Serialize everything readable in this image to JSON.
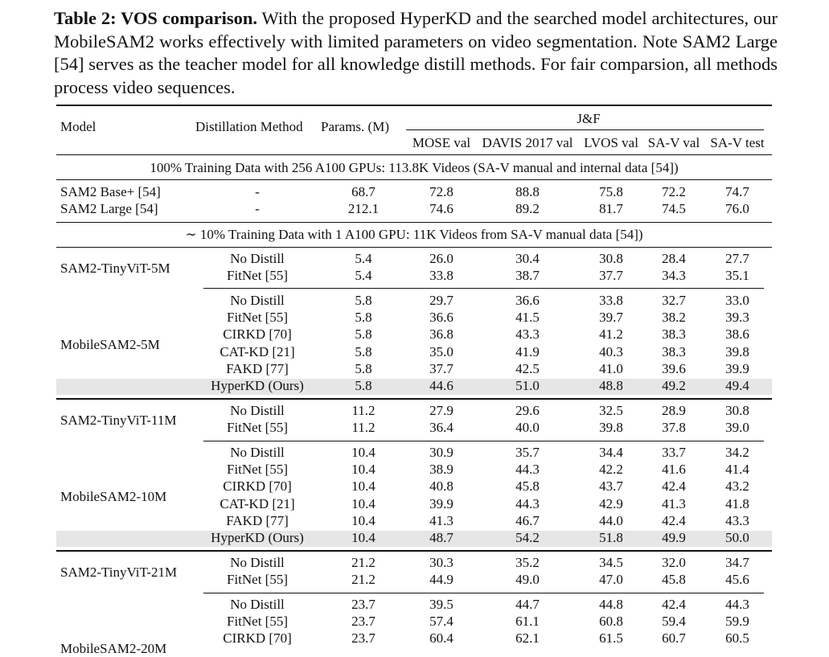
{
  "caption": {
    "label": "Table 2: VOS comparison.",
    "text": "With the proposed HyperKD and the searched model architectures, our MobileSAM2 works effectively with limited parameters on video segmentation. Note SAM2 Large [54] serves as the teacher model for all knowledge distill methods. For fair comparsion, all methods process video sequences."
  },
  "header": {
    "model": "Model",
    "method": "Distillation Method",
    "params": "Params. (M)",
    "jf": "J&F",
    "benchmarks": [
      "MOSE val",
      "DAVIS 2017 val",
      "LVOS val",
      "SA-V val",
      "SA-V test"
    ]
  },
  "section1": "100% Training Data with 256 A100 GPUs: 113.8K Videos (SA-V manual and internal data [54])",
  "section2": "∼ 10% Training Data with 1 A100 GPU: 11K Videos from SA-V manual data [54])",
  "full_rows": [
    {
      "model": "SAM2 Base+ [54]",
      "method": "-",
      "params": "68.7",
      "mose": "72.8",
      "davis": "88.8",
      "lvos": "75.8",
      "sav_val": "72.2",
      "sav_test": "74.7"
    },
    {
      "model": "SAM2 Large [54]",
      "method": "-",
      "params": "212.1",
      "mose": "74.6",
      "davis": "89.2",
      "lvos": "81.7",
      "sav_val": "74.5",
      "sav_test": "76.0"
    }
  ],
  "groups": [
    {
      "model": "SAM2-TinyViT-5M",
      "rows": [
        {
          "method": "No Distill",
          "params": "5.4",
          "mose": "26.0",
          "davis": "30.4",
          "lvos": "30.8",
          "sav_val": "28.4",
          "sav_test": "27.7"
        },
        {
          "method": "FitNet [55]",
          "params": "5.4",
          "mose": "33.8",
          "davis": "38.7",
          "lvos": "37.7",
          "sav_val": "34.3",
          "sav_test": "35.1"
        }
      ]
    },
    {
      "model": "MobileSAM2-5M",
      "rows": [
        {
          "method": "No Distill",
          "params": "5.8",
          "mose": "29.7",
          "davis": "36.6",
          "lvos": "33.8",
          "sav_val": "32.7",
          "sav_test": "33.0"
        },
        {
          "method": "FitNet [55]",
          "params": "5.8",
          "mose": "36.6",
          "davis": "41.5",
          "lvos": "39.7",
          "sav_val": "38.2",
          "sav_test": "39.3"
        },
        {
          "method": "CIRKD [70]",
          "params": "5.8",
          "mose": "36.8",
          "davis": "43.3",
          "lvos": "41.2",
          "sav_val": "38.3",
          "sav_test": "38.6"
        },
        {
          "method": "CAT-KD [21]",
          "params": "5.8",
          "mose": "35.0",
          "davis": "41.9",
          "lvos": "40.3",
          "sav_val": "38.3",
          "sav_test": "39.8"
        },
        {
          "method": "FAKD [77]",
          "params": "5.8",
          "mose": "37.7",
          "davis": "42.5",
          "lvos": "41.0",
          "sav_val": "39.6",
          "sav_test": "39.9"
        },
        {
          "method": "HyperKD (Ours)",
          "params": "5.8",
          "mose": "44.6",
          "davis": "51.0",
          "lvos": "48.8",
          "sav_val": "49.2",
          "sav_test": "49.4"
        }
      ]
    },
    {
      "model": "SAM2-TinyViT-11M",
      "rows": [
        {
          "method": "No Distill",
          "params": "11.2",
          "mose": "27.9",
          "davis": "29.6",
          "lvos": "32.5",
          "sav_val": "28.9",
          "sav_test": "30.8"
        },
        {
          "method": "FitNet [55]",
          "params": "11.2",
          "mose": "36.4",
          "davis": "40.0",
          "lvos": "39.8",
          "sav_val": "37.8",
          "sav_test": "39.0"
        }
      ]
    },
    {
      "model": "MobileSAM2-10M",
      "rows": [
        {
          "method": "No Distill",
          "params": "10.4",
          "mose": "30.9",
          "davis": "35.7",
          "lvos": "34.4",
          "sav_val": "33.7",
          "sav_test": "34.2"
        },
        {
          "method": "FitNet [55]",
          "params": "10.4",
          "mose": "38.9",
          "davis": "44.3",
          "lvos": "42.2",
          "sav_val": "41.6",
          "sav_test": "41.4"
        },
        {
          "method": "CIRKD [70]",
          "params": "10.4",
          "mose": "40.8",
          "davis": "45.8",
          "lvos": "43.7",
          "sav_val": "42.4",
          "sav_test": "43.2"
        },
        {
          "method": "CAT-KD [21]",
          "params": "10.4",
          "mose": "39.9",
          "davis": "44.3",
          "lvos": "42.9",
          "sav_val": "41.3",
          "sav_test": "41.8"
        },
        {
          "method": "FAKD [77]",
          "params": "10.4",
          "mose": "41.3",
          "davis": "46.7",
          "lvos": "44.0",
          "sav_val": "42.4",
          "sav_test": "43.3"
        },
        {
          "method": "HyperKD (Ours)",
          "params": "10.4",
          "mose": "48.7",
          "davis": "54.2",
          "lvos": "51.8",
          "sav_val": "49.9",
          "sav_test": "50.0"
        }
      ]
    },
    {
      "model": "SAM2-TinyViT-21M",
      "rows": [
        {
          "method": "No Distill",
          "params": "21.2",
          "mose": "30.3",
          "davis": "35.2",
          "lvos": "34.5",
          "sav_val": "32.0",
          "sav_test": "34.7"
        },
        {
          "method": "FitNet [55]",
          "params": "21.2",
          "mose": "44.9",
          "davis": "49.0",
          "lvos": "47.0",
          "sav_val": "45.8",
          "sav_test": "45.6"
        }
      ]
    },
    {
      "model": "MobileSAM2-20M",
      "rows": [
        {
          "method": "No Distill",
          "params": "23.7",
          "mose": "39.5",
          "davis": "44.7",
          "lvos": "44.8",
          "sav_val": "42.4",
          "sav_test": "44.3"
        },
        {
          "method": "FitNet [55]",
          "params": "23.7",
          "mose": "57.4",
          "davis": "61.1",
          "lvos": "60.8",
          "sav_val": "59.4",
          "sav_test": "59.9"
        },
        {
          "method": "CIRKD [70]",
          "params": "23.7",
          "mose": "60.4",
          "davis": "62.1",
          "lvos": "61.5",
          "sav_val": "60.7",
          "sav_test": "60.5"
        }
      ]
    }
  ]
}
